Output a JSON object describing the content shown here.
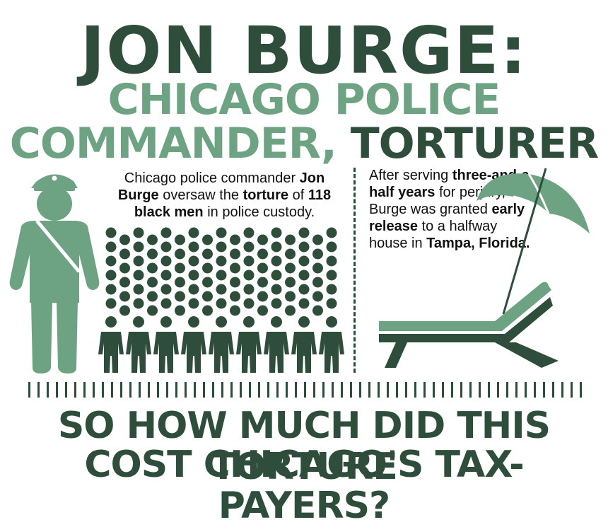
{
  "title": "JON BURGE:",
  "subtitle_line1": "CHICAGO POLICE",
  "subtitle_line2_light": "COMMANDER,",
  "subtitle_line2_dark": "TORTURER",
  "left_text": {
    "part1": "Chicago police commander ",
    "bold1": "Jon Burge",
    "part2": " oversaw the ",
    "bold2": "torture",
    "part3": " of ",
    "bold3": "118 black men",
    "part4": " in police custody."
  },
  "right_text": {
    "part1": "After serving ",
    "bold1": "three-and-a-half years",
    "part2": " for perjury, Burge was granted ",
    "bold2": "early release",
    "part3": " to a halfway house in ",
    "bold3": "Tampa, Florida."
  },
  "bottom_line1": "SO HOW MUCH DID THIS TORTURE",
  "bottom_line2": "COST CHICAGO'S TAX-PAYERS?",
  "icons": [
    "police-officer-icon",
    "people-dots-icon",
    "beach-umbrella-icon",
    "lounge-chair-icon"
  ],
  "colors": {
    "dark_green": "#2e4d3b",
    "light_green": "#6da383"
  }
}
